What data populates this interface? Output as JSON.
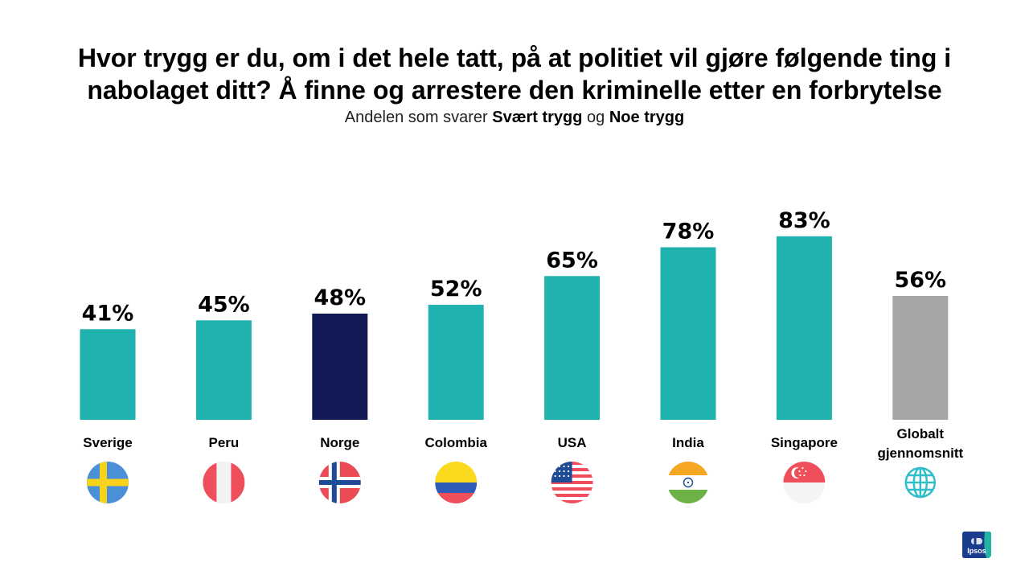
{
  "title": {
    "line1": "Hvor trygg er du, om i det hele tatt, på at politiet vil gjøre følgende ting i",
    "line2": "nabolaget ditt? Å finne og arrestere den kriminelle etter en forbrytelse"
  },
  "subtitle": {
    "prefix": "Andelen som svarer",
    "bold1": "Svært trygg",
    "middle": "og",
    "bold2": "Noe trygg"
  },
  "chart_data": {
    "type": "bar",
    "categories": [
      "Sverige",
      "Peru",
      "Norge",
      "Colombia",
      "USA",
      "India",
      "Singapore",
      "Globalt gjennomsnitt"
    ],
    "values": [
      41,
      45,
      48,
      52,
      65,
      78,
      83,
      56
    ],
    "value_labels": [
      "41%",
      "45%",
      "48%",
      "52%",
      "65%",
      "78%",
      "83%",
      "56%"
    ],
    "unit": "%",
    "ylim": [
      0,
      100
    ],
    "grid": false,
    "legend": "none",
    "colors": {
      "default": "#20b2ae",
      "highlight": "#121a55",
      "average": "#a6a6a6"
    },
    "bar_colors": [
      "#20b2ae",
      "#20b2ae",
      "#121a55",
      "#20b2ae",
      "#20b2ae",
      "#20b2ae",
      "#20b2ae",
      "#a6a6a6"
    ],
    "category_icons": [
      "sweden-flag-icon",
      "peru-flag-icon",
      "norway-flag-icon",
      "colombia-flag-icon",
      "usa-flag-icon",
      "india-flag-icon",
      "singapore-flag-icon",
      "globe-icon"
    ]
  },
  "logo": {
    "text": "Ipsos",
    "color": "#1a3c8c"
  }
}
